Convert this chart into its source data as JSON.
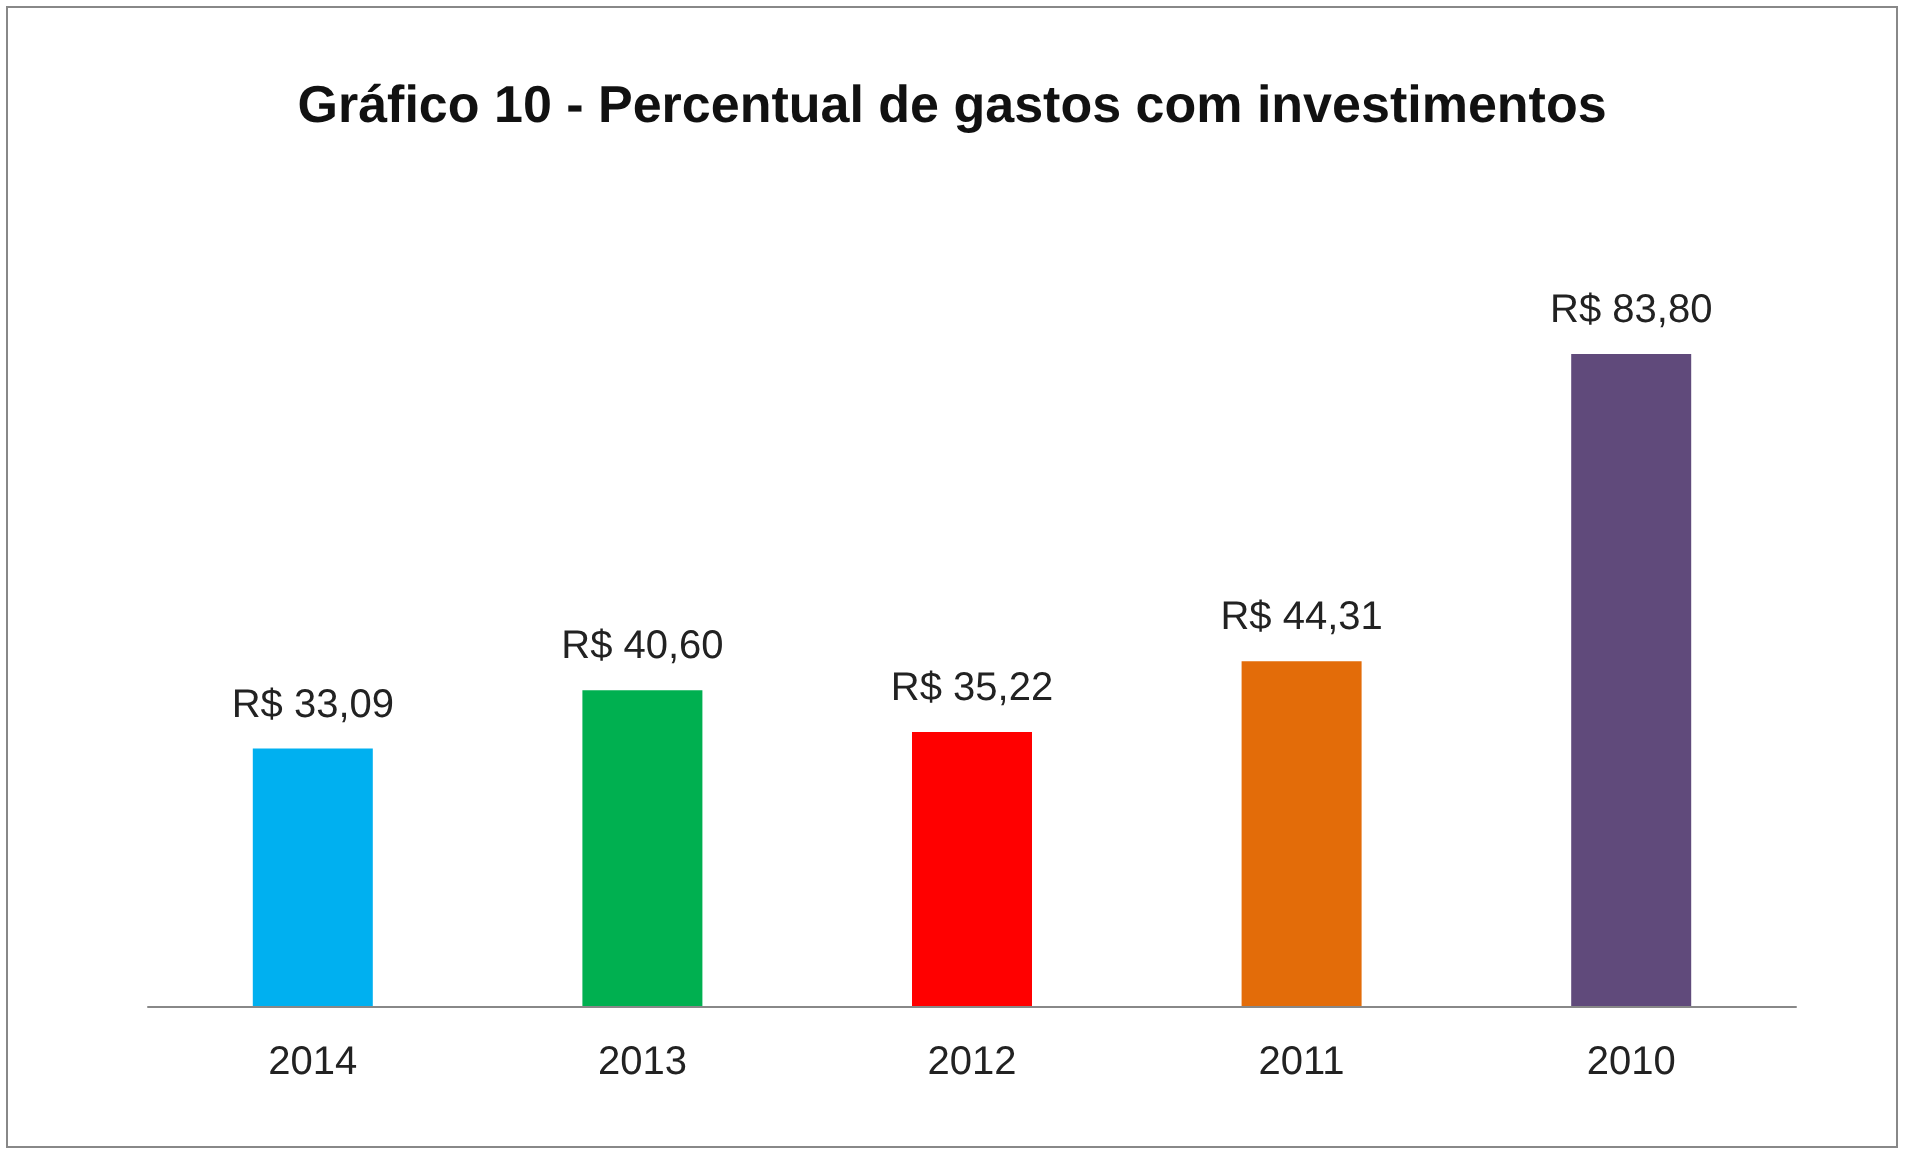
{
  "chart_data": {
    "type": "bar",
    "title": "Gráfico 10 - Percentual de gastos com investimentos",
    "categories": [
      "2014",
      "2013",
      "2012",
      "2011",
      "2010"
    ],
    "values": [
      33.09,
      40.6,
      35.22,
      44.31,
      83.8
    ],
    "colors": [
      "#00b0f0",
      "#00b050",
      "#ff0000",
      "#e36c09",
      "#604a7b"
    ],
    "value_labels": [
      "R$ 33,09",
      "R$ 40,60",
      "R$ 35,22",
      "R$ 44,31",
      "R$ 83,80"
    ]
  }
}
